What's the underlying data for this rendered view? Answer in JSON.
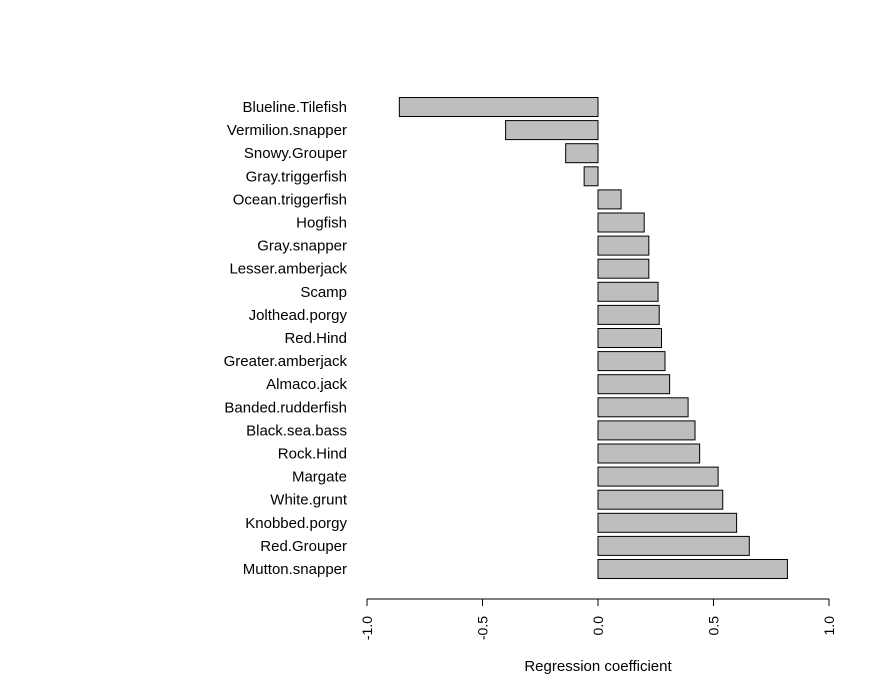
{
  "chart_data": {
    "type": "bar",
    "orientation": "horizontal",
    "title": "",
    "xlabel": "Regression coefficient",
    "ylabel": "",
    "xlim": [
      -1.0,
      1.0
    ],
    "xticks": [
      "-1.0",
      "-0.5",
      "0.0",
      "0.5",
      "1.0"
    ],
    "grid": false,
    "bar_color": "#bebebe",
    "categories": [
      "Blueline.Tilefish",
      "Vermilion.snapper",
      "Snowy.Grouper",
      "Gray.triggerfish",
      "Ocean.triggerfish",
      "Hogfish",
      "Gray.snapper",
      "Lesser.amberjack",
      "Scamp",
      "Jolthead.porgy",
      "Red.Hind",
      "Greater.amberjack",
      "Almaco.jack",
      "Banded.rudderfish",
      "Black.sea.bass",
      "Rock.Hind",
      "Margate",
      "White.grunt",
      "Knobbed.porgy",
      "Red.Grouper",
      "Mutton.snapper"
    ],
    "values": [
      -0.86,
      -0.4,
      -0.14,
      -0.06,
      0.1,
      0.2,
      0.22,
      0.22,
      0.26,
      0.265,
      0.275,
      0.29,
      0.31,
      0.39,
      0.42,
      0.44,
      0.52,
      0.54,
      0.6,
      0.655,
      0.82
    ]
  }
}
